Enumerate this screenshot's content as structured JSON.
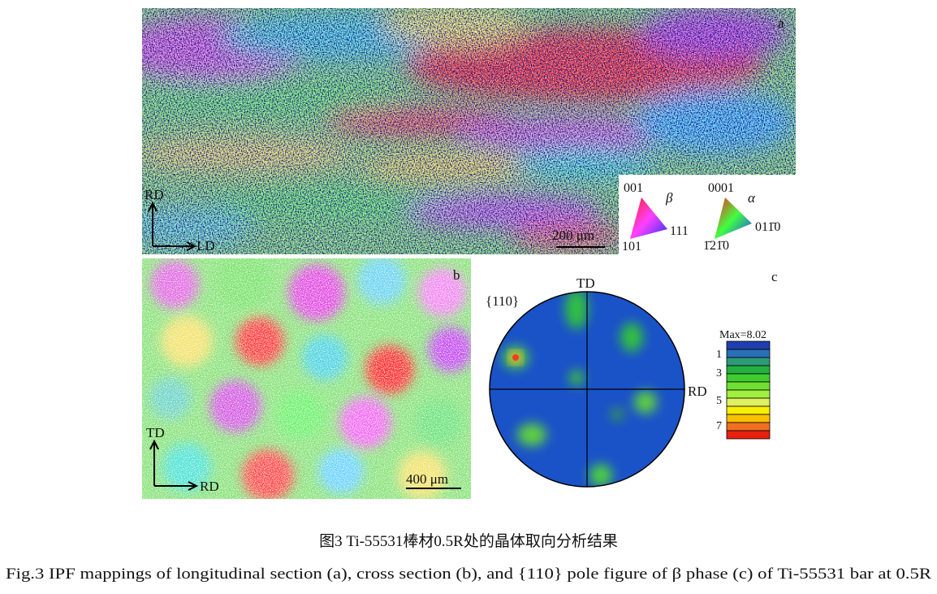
{
  "panels": {
    "a": {
      "label": "a",
      "axis_up": "RD",
      "axis_right": "LD",
      "scale_bar": "200 μm",
      "legend": {
        "beta": {
          "symbol": "β",
          "top": "001",
          "bottom": "101",
          "right": "111"
        },
        "alpha": {
          "symbol": "α",
          "top": "0001",
          "bottom": "1̄21̄0",
          "right": "011̄0"
        }
      }
    },
    "b": {
      "label": "b",
      "axis_up": "TD",
      "axis_right": "RD",
      "scale_bar": "400 μm"
    },
    "c": {
      "label": "c",
      "pole": "{110}",
      "top": "TD",
      "right": "RD",
      "max": "Max=8.02",
      "colorbar_ticks": [
        "1",
        "3",
        "5",
        "7"
      ]
    }
  },
  "caption": {
    "cn": "图3 Ti-55531棒材0.5R处的晶体取向分析结果",
    "en": "Fig.3 IPF mappings of longitudinal section (a), cross section (b), and {110} pole figure of β phase (c) of Ti-55531 bar at 0.5R"
  }
}
